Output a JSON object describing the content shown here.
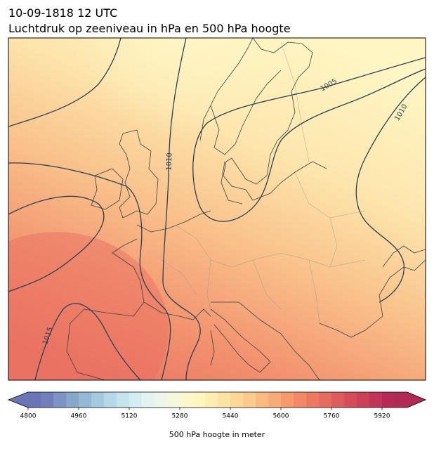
{
  "title": "10-09-1818 12 UTC",
  "subtitle": "Luchtdruk op zeeniveau in hPa en 500 hPa hoogte",
  "contour_labels": [
    1010,
    1005,
    1010,
    1015
  ],
  "colorbar": {
    "label": "500 hPa hoogte in meter",
    "range": [
      4800,
      6000
    ],
    "ticks": [
      4800,
      4960,
      5120,
      5280,
      5440,
      5600,
      5760,
      5920
    ],
    "colors": [
      "#6b74b5",
      "#717fba",
      "#7c93c4",
      "#86a6cc",
      "#94b8d6",
      "#a5cae0",
      "#b5d9e8",
      "#c5e4ef",
      "#d4edf3",
      "#e2f3f2",
      "#edf6ea",
      "#f5f8dc",
      "#fbf8cc",
      "#fff5c0",
      "#feecb0",
      "#fde3a3",
      "#fcd797",
      "#fbca8c",
      "#f9bb80",
      "#f7ab76",
      "#f59a6d",
      "#f18966",
      "#ed7962",
      "#e76b5f",
      "#df5c5c",
      "#d64d5a",
      "#cc4058",
      "#c03457",
      "#b52a56",
      "#b02a55"
    ]
  }
}
